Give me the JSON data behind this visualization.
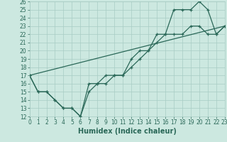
{
  "xlabel": "Humidex (Indice chaleur)",
  "background_color": "#cce8e0",
  "grid_color": "#a8ccc4",
  "line_color": "#2a6858",
  "ylim": [
    12,
    26
  ],
  "xlim": [
    0,
    23
  ],
  "yticks": [
    12,
    13,
    14,
    15,
    16,
    17,
    18,
    19,
    20,
    21,
    22,
    23,
    24,
    25,
    26
  ],
  "xticks": [
    0,
    1,
    2,
    3,
    4,
    5,
    6,
    7,
    8,
    9,
    10,
    11,
    12,
    13,
    14,
    15,
    16,
    17,
    18,
    19,
    20,
    21,
    22,
    23
  ],
  "line1_x": [
    0,
    1,
    2,
    3,
    4,
    5,
    6,
    7,
    8,
    9,
    10,
    11,
    12,
    13,
    14,
    15,
    16,
    17,
    18,
    19,
    20,
    21,
    22,
    23
  ],
  "line1_y": [
    17,
    15,
    15,
    14,
    13,
    13,
    12,
    16,
    16,
    17,
    17,
    17,
    19,
    20,
    20,
    22,
    22,
    25,
    25,
    25,
    26,
    25,
    22,
    23
  ],
  "line2_x": [
    0,
    1,
    2,
    3,
    4,
    5,
    6,
    7,
    8,
    9,
    10,
    11,
    12,
    13,
    14,
    15,
    16,
    17,
    18,
    19,
    20,
    21,
    22,
    23
  ],
  "line2_y": [
    17,
    15,
    15,
    14,
    13,
    13,
    12,
    15,
    16,
    16,
    17,
    17,
    18,
    19,
    20,
    21,
    22,
    22,
    22,
    23,
    23,
    22,
    22,
    23
  ],
  "line3_x": [
    0,
    23
  ],
  "line3_y": [
    17,
    23
  ],
  "tick_fontsize": 5.5,
  "xlabel_fontsize": 7
}
